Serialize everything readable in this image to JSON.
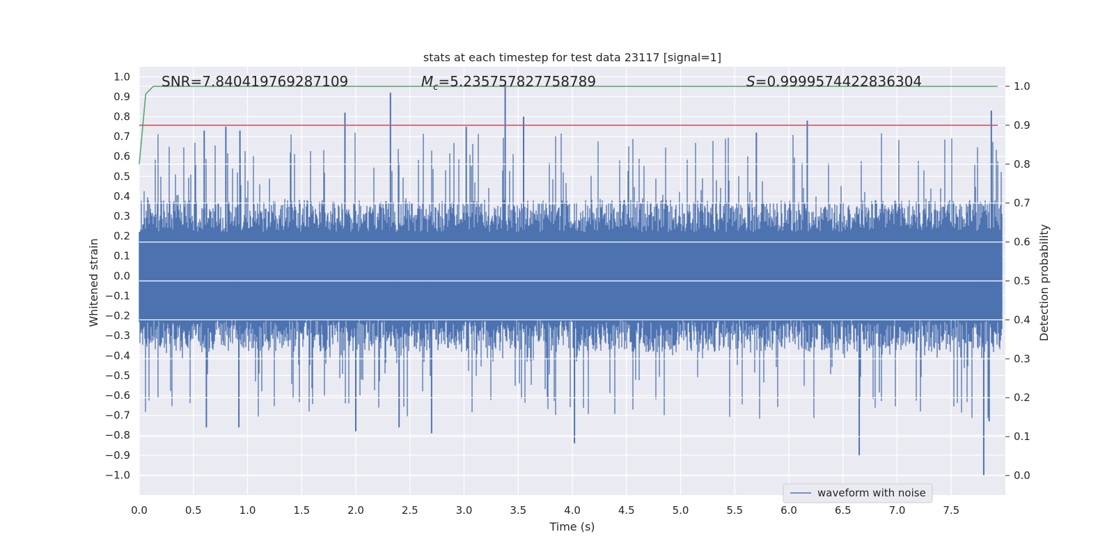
{
  "chart_data": {
    "type": "line",
    "title": "stats at each timestep for test data 23117 [signal=1]",
    "xlabel": "Time (s)",
    "ylabel": "Whitened strain",
    "y2label": "Detection probability",
    "xlim": [
      0.0,
      8.0
    ],
    "ylim": [
      -1.1,
      1.05
    ],
    "y2lim": [
      -0.05,
      1.05
    ],
    "xticks": [
      "0.0",
      "0.5",
      "1.0",
      "1.5",
      "2.0",
      "2.5",
      "3.0",
      "3.5",
      "4.0",
      "4.5",
      "5.0",
      "5.5",
      "6.0",
      "6.5",
      "7.0",
      "7.5"
    ],
    "yticks": [
      "1.0",
      "0.9",
      "0.8",
      "0.7",
      "0.6",
      "0.5",
      "0.4",
      "0.3",
      "0.2",
      "0.1",
      "0.0",
      "−0.1",
      "−0.2",
      "−0.3",
      "−0.4",
      "−0.5",
      "−0.6",
      "−0.7",
      "−0.8",
      "−0.9",
      "−1.0"
    ],
    "y2ticks": [
      "1.0",
      "0.9",
      "0.8",
      "0.7",
      "0.6",
      "0.5",
      "0.4",
      "0.3",
      "0.2",
      "0.1",
      "0.0"
    ],
    "annotations": {
      "snr": "SNR=7.840419769287109",
      "mc_symbol": "M",
      "mc_sub": "c",
      "mc_value": "=5.235757827758789",
      "s_symbol": "S",
      "s_value": "=0.9999574422836304"
    },
    "legend": {
      "label": "waveform with noise",
      "position": "lower-right"
    },
    "threshold": 0.9,
    "series": [
      {
        "name": "waveform with noise",
        "color": "#4c72b0",
        "time_range": [
          0.0,
          7.97
        ],
        "amplitude_band": [
          -0.3,
          0.3
        ],
        "peaks": [
          [
            0.6,
            0.73
          ],
          [
            0.62,
            -0.76
          ],
          [
            0.8,
            0.75
          ],
          [
            0.93,
            0.73
          ],
          [
            0.92,
            -0.76
          ],
          [
            1.9,
            0.82
          ],
          [
            2.0,
            -0.78
          ],
          [
            2.32,
            0.92
          ],
          [
            2.4,
            -0.76
          ],
          [
            2.7,
            -0.79
          ],
          [
            3.02,
            0.75
          ],
          [
            3.38,
            0.96
          ],
          [
            3.55,
            0.8
          ],
          [
            4.02,
            -0.84
          ],
          [
            5.7,
            0.72
          ],
          [
            6.17,
            0.78
          ],
          [
            6.65,
            -0.9
          ],
          [
            7.8,
            -1.0
          ],
          [
            7.87,
            0.83
          ],
          [
            7.85,
            -0.73
          ]
        ]
      },
      {
        "name": "detection probability",
        "color": "#55a868",
        "x": [
          0.0,
          0.06,
          0.13,
          7.93
        ],
        "y": [
          0.8,
          0.98,
          1.0,
          1.0
        ]
      },
      {
        "name": "threshold",
        "color": "#c44e52",
        "x": [
          0.0,
          7.93
        ],
        "y": [
          0.9,
          0.9
        ]
      }
    ]
  }
}
